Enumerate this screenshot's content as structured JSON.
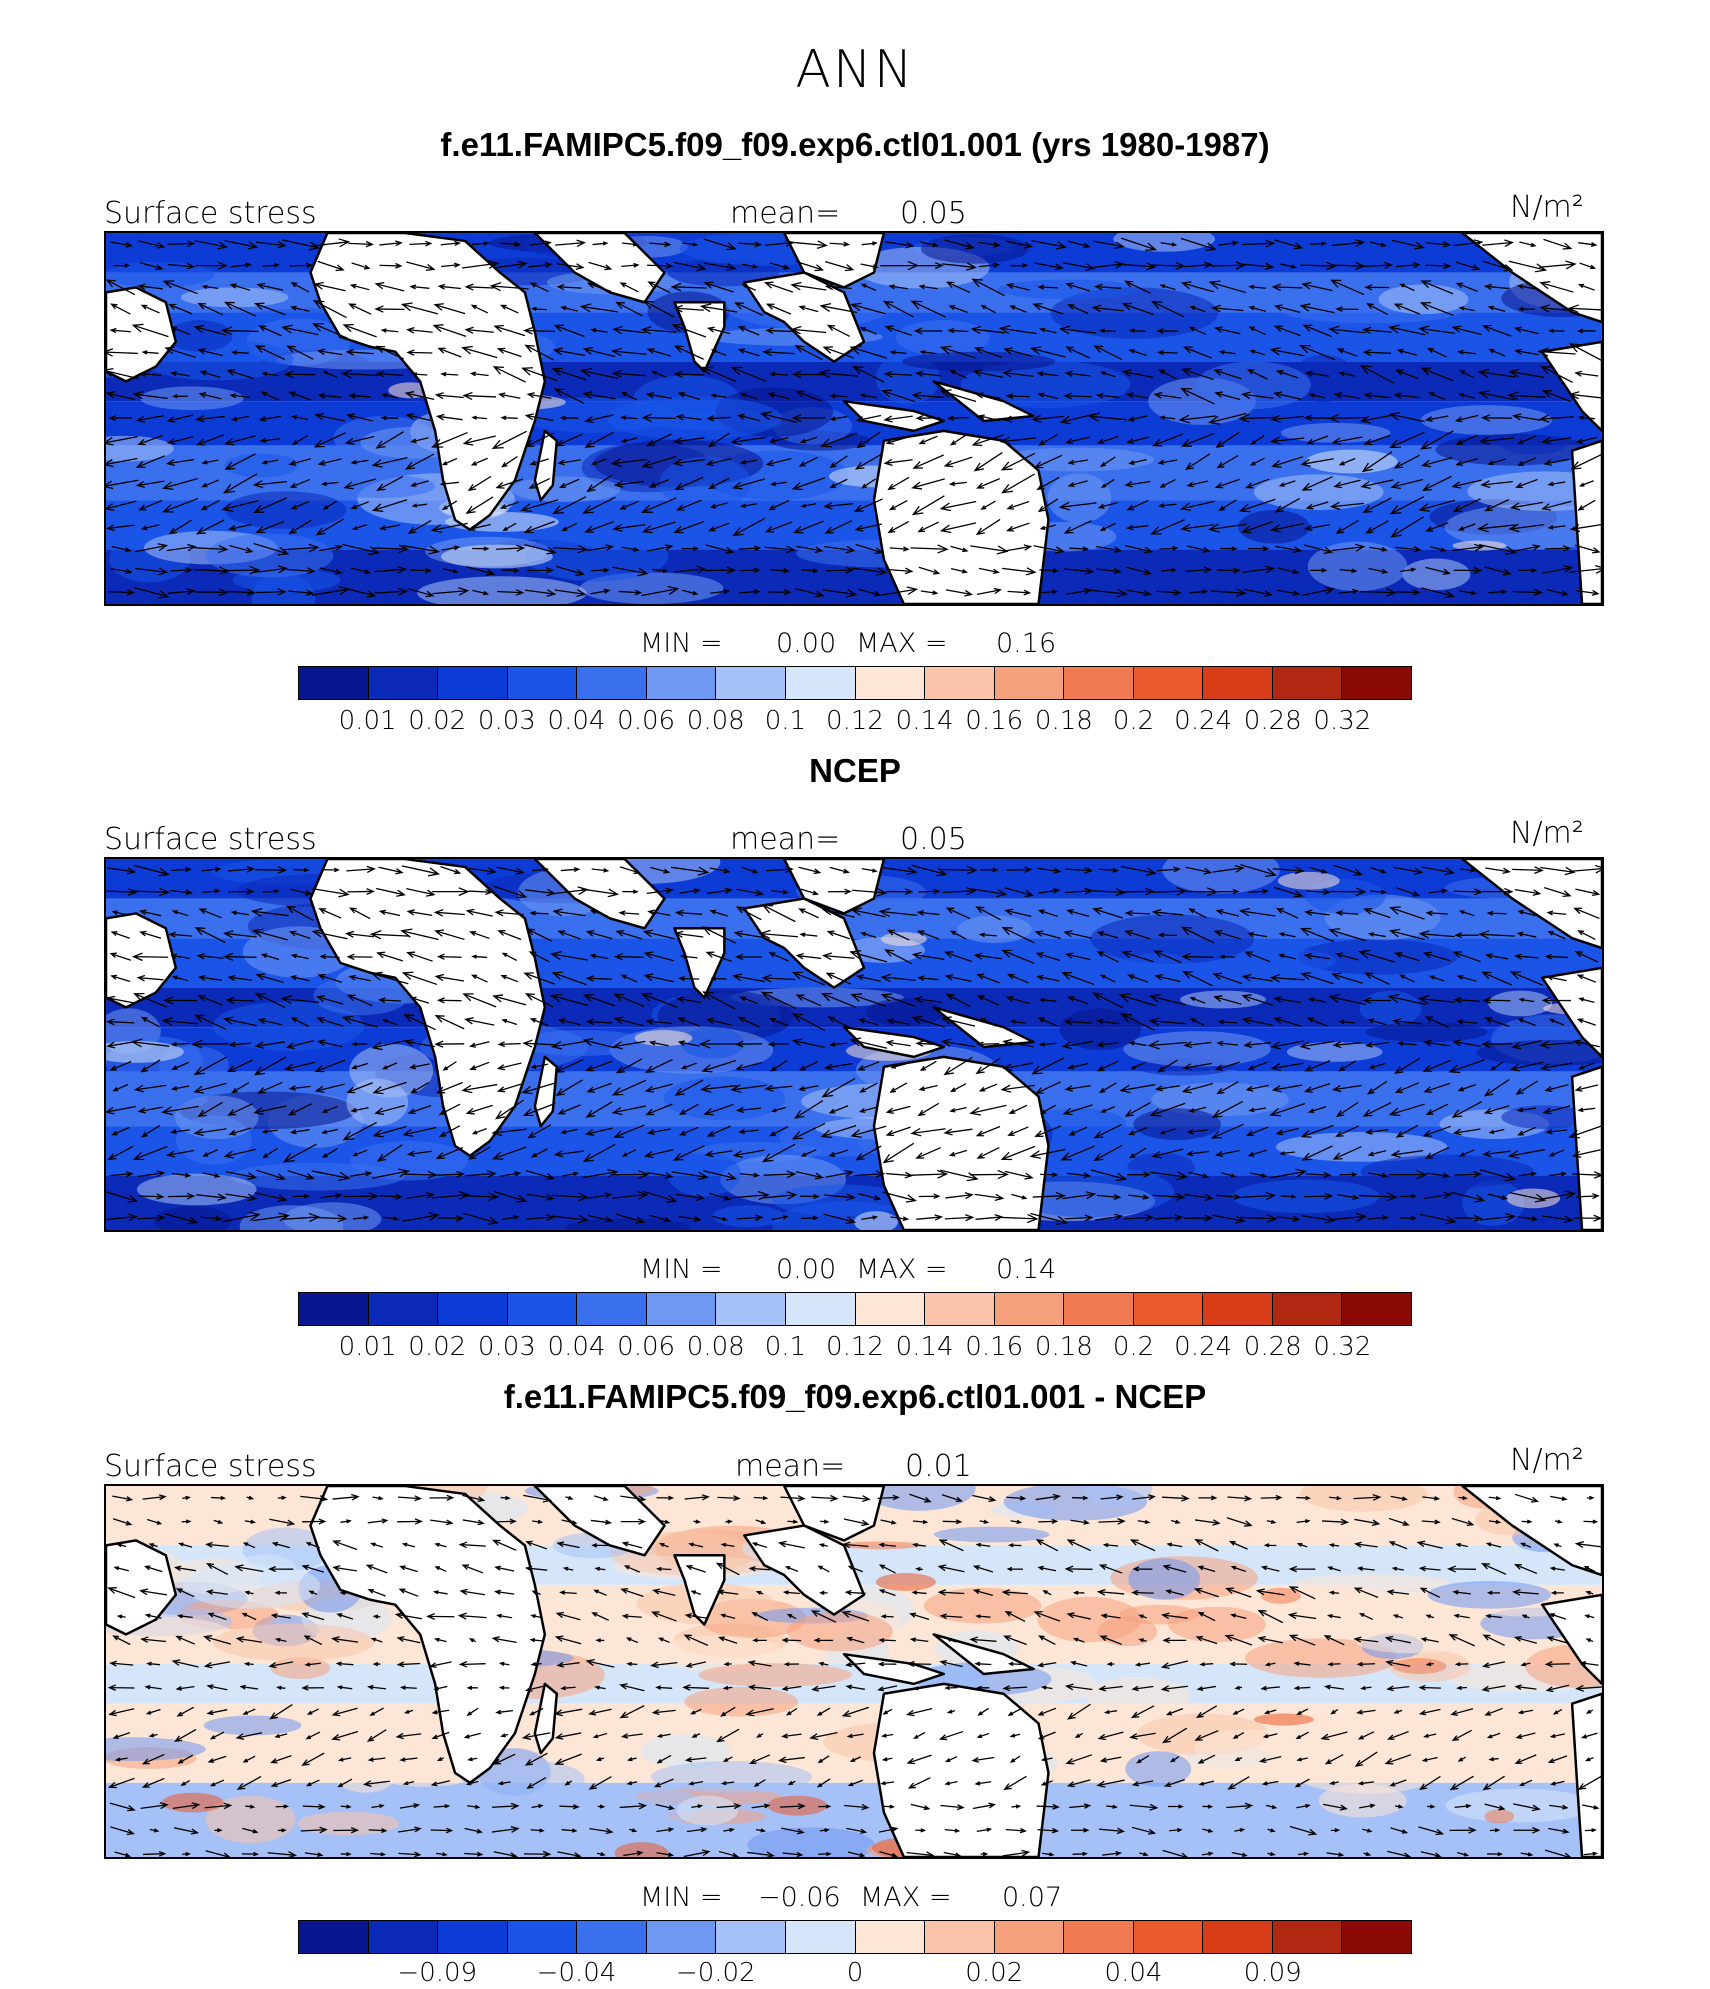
{
  "title": "ANN",
  "colors": {
    "land": "#ffffff",
    "coast": "#000000",
    "arrow": "#000000"
  },
  "colorbar_colors": [
    "#08168f",
    "#0b2ab8",
    "#0c3bd6",
    "#1a55e8",
    "#3a70ee",
    "#6f98f3",
    "#a6c1f7",
    "#d6e6fa",
    "#fde6d6",
    "#f9c4aa",
    "#f5a07d",
    "#f07b52",
    "#e95a2c",
    "#d63d18",
    "#b02812",
    "#8b0a07"
  ],
  "panels": [
    {
      "title": "f.e11.FAMIPC5.f09_f09.exp6.ctl01.001 (yrs 1980-1987)",
      "left_label": "Surface stress",
      "mean_label": "mean=",
      "mean_value": "0.05",
      "units": "N/m²",
      "min_label": "MIN =",
      "min_value": "0.00",
      "max_label": "MAX =",
      "max_value": "0.16",
      "tick_labels": [
        "0.01",
        "0.02",
        "0.03",
        "0.04",
        "0.06",
        "0.08",
        "0.1",
        "0.12",
        "0.14",
        "0.16",
        "0.18",
        "0.2",
        "0.24",
        "0.28",
        "0.32"
      ]
    },
    {
      "title": "NCEP",
      "left_label": "Surface stress",
      "mean_label": "mean=",
      "mean_value": "0.05",
      "units": "N/m²",
      "min_label": "MIN =",
      "min_value": "0.00",
      "max_label": "MAX =",
      "max_value": "0.14",
      "tick_labels": [
        "0.01",
        "0.02",
        "0.03",
        "0.04",
        "0.06",
        "0.08",
        "0.1",
        "0.12",
        "0.14",
        "0.16",
        "0.18",
        "0.2",
        "0.24",
        "0.28",
        "0.32"
      ]
    },
    {
      "title": "f.e11.FAMIPC5.f09_f09.exp6.ctl01.001 - NCEP",
      "left_label": "Surface stress",
      "mean_label": "mean=",
      "mean_value": "0.01",
      "units": "N/m²",
      "min_label": "MIN =",
      "min_value": "−0.06",
      "max_label": "MAX =",
      "max_value": "0.07",
      "tick_labels": [
        "−0.09",
        "−0.04",
        "−0.02",
        "0",
        "0.02",
        "0.04",
        "0.09"
      ]
    }
  ],
  "chart_data": [
    {
      "type": "heatmap",
      "subtype": "filled contour map with wind-stress vectors",
      "title": "f.e11.FAMIPC5.f09_f09.exp6.ctl01.001 (yrs 1980-1987)",
      "variable": "Surface stress",
      "units": "N/m²",
      "mean": 0.05,
      "min": 0.0,
      "max": 0.16,
      "contour_levels": [
        0.01,
        0.02,
        0.03,
        0.04,
        0.06,
        0.08,
        0.1,
        0.12,
        0.14,
        0.16,
        0.18,
        0.2,
        0.24,
        0.28,
        0.32
      ],
      "colormap": "blue-white-red"
    },
    {
      "type": "heatmap",
      "subtype": "filled contour map with wind-stress vectors",
      "title": "NCEP",
      "variable": "Surface stress",
      "units": "N/m²",
      "mean": 0.05,
      "min": 0.0,
      "max": 0.14,
      "contour_levels": [
        0.01,
        0.02,
        0.03,
        0.04,
        0.06,
        0.08,
        0.1,
        0.12,
        0.14,
        0.16,
        0.18,
        0.2,
        0.24,
        0.28,
        0.32
      ],
      "colormap": "blue-white-red"
    },
    {
      "type": "heatmap",
      "subtype": "filled contour difference map with wind-stress vectors",
      "title": "f.e11.FAMIPC5.f09_f09.exp6.ctl01.001 - NCEP",
      "variable": "Surface stress",
      "units": "N/m²",
      "mean": 0.01,
      "min": -0.06,
      "max": 0.07,
      "contour_level_labels": [
        -0.09,
        -0.04,
        -0.02,
        0,
        0.02,
        0.04,
        0.09
      ],
      "colormap": "blue-white-red"
    }
  ]
}
